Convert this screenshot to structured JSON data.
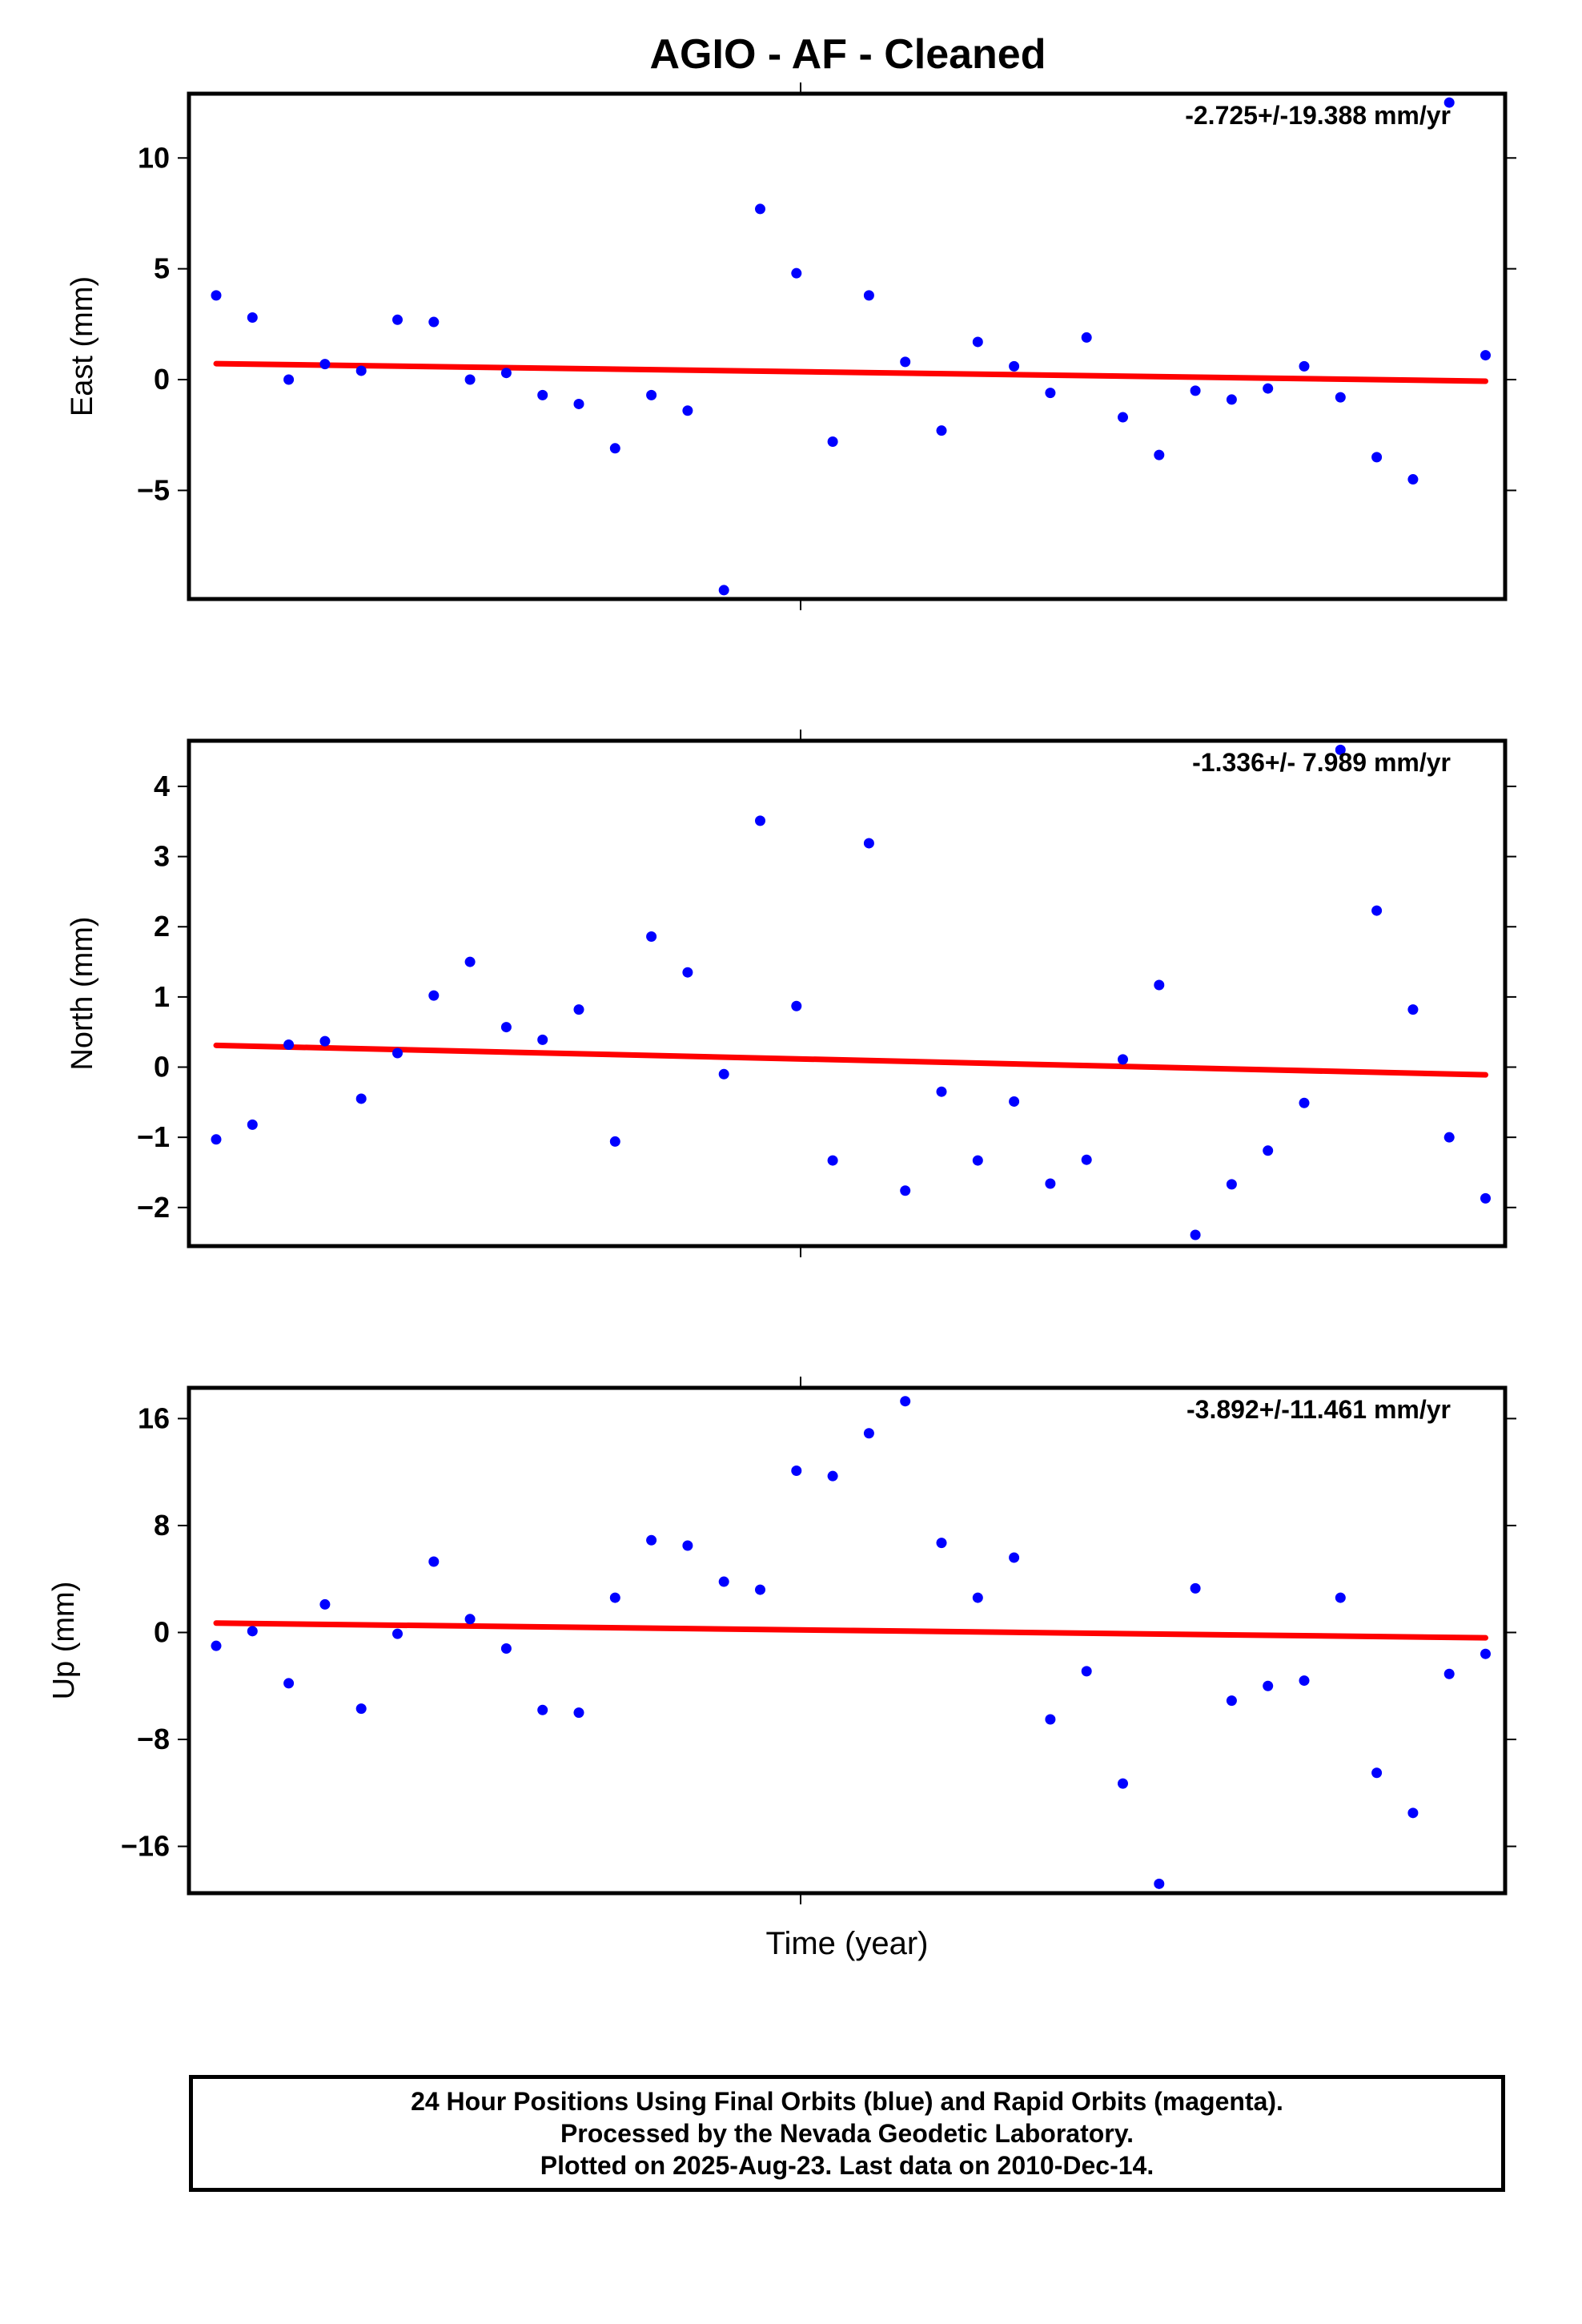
{
  "title": "AGIO  - AF - Cleaned",
  "xlabel": "Time (year)",
  "footer": {
    "line1": "24 Hour Positions Using Final Orbits (blue) and Rapid Orbits (magenta).",
    "line2": "Processed by the Nevada Geodetic Laboratory.",
    "line3": "Plotted on 2025-Aug-23. Last data on 2010-Dec-14."
  },
  "colors": {
    "points": "#0000ff",
    "trend": "#ff0000"
  },
  "chart_data": [
    {
      "type": "scatter",
      "ylabel": "East (mm)",
      "rate": "-2.725+/-19.388 mm/yr",
      "ylim": [
        -9.9,
        12.9
      ],
      "yticks": [
        10,
        5,
        0,
        -5
      ],
      "ytick_labels": [
        "10",
        "5",
        "0",
        "−5"
      ],
      "values": [
        3.8,
        2.8,
        0.0,
        0.7,
        0.4,
        2.7,
        2.6,
        0.0,
        0.3,
        -0.7,
        -1.1,
        -3.1,
        -0.7,
        -1.4,
        -9.5,
        7.7,
        4.8,
        -2.8,
        3.8,
        0.8,
        -2.3,
        1.7,
        0.6,
        -0.6,
        1.9,
        -1.7,
        -3.4,
        -0.5,
        -0.9,
        -0.4,
        0.6,
        -0.8,
        -3.5,
        -4.5,
        12.5,
        1.1
      ],
      "trend": [
        0.72,
        -0.07
      ]
    },
    {
      "type": "scatter",
      "ylabel": "North (mm)",
      "rate": "-1.336+/- 7.989 mm/yr",
      "ylim": [
        -2.55,
        4.65
      ],
      "yticks": [
        4,
        3,
        2,
        1,
        0,
        -1,
        -2
      ],
      "ytick_labels": [
        "4",
        "3",
        "2",
        "1",
        "0",
        "−1",
        "−2"
      ],
      "values": [
        -1.03,
        -0.82,
        0.32,
        0.37,
        -0.45,
        0.2,
        1.02,
        1.5,
        0.57,
        0.39,
        0.82,
        -1.06,
        1.86,
        1.35,
        -0.1,
        3.51,
        0.87,
        -1.33,
        3.19,
        -1.76,
        -0.35,
        -1.33,
        -0.49,
        -1.66,
        -1.32,
        0.11,
        1.17,
        -2.39,
        -1.67,
        -1.19,
        -0.51,
        4.52,
        2.23,
        0.82,
        -1.0,
        -1.87
      ],
      "trend": [
        0.31,
        -0.11
      ]
    },
    {
      "type": "scatter",
      "ylabel": "Up (mm)",
      "rate": "-3.892+/-11.461 mm/yr",
      "ylim": [
        -19.5,
        18.3
      ],
      "yticks": [
        16,
        8,
        0,
        -8,
        -16
      ],
      "ytick_labels": [
        "16",
        "8",
        "0",
        "−8",
        "−16"
      ],
      "values": [
        -1.0,
        0.1,
        -3.8,
        2.1,
        -5.7,
        -0.1,
        5.3,
        1.0,
        -1.2,
        -5.8,
        -6.0,
        2.6,
        6.9,
        6.5,
        3.8,
        3.2,
        12.1,
        11.7,
        14.9,
        17.3,
        6.7,
        2.6,
        5.6,
        -6.5,
        -2.9,
        -11.3,
        -18.8,
        3.3,
        -5.1,
        -4.0,
        -3.6,
        2.6,
        -10.5,
        -13.5,
        -3.1,
        -1.6
      ],
      "trend": [
        0.7,
        -0.4
      ]
    }
  ]
}
